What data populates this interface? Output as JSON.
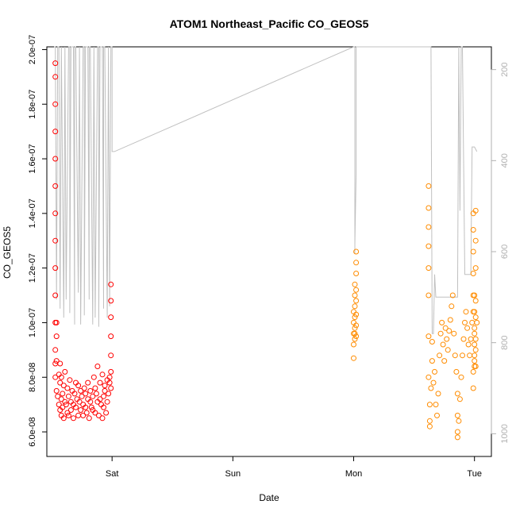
{
  "chart_data": {
    "type": "scatter",
    "title": "ATOM1 Northeast_Pacific CO_GEOS5",
    "xlabel": "Date",
    "ylabel": "CO_GEOS5",
    "x_ticks": [
      "Sat",
      "Sun",
      "Mon",
      "Tue"
    ],
    "x_tick_days": [
      1,
      2,
      3,
      4
    ],
    "xlim_days": [
      0.46,
      4.14
    ],
    "y_ticks": [
      "6.0e-08",
      "8.0e-08",
      "1.0e-07",
      "1.2e-07",
      "1.4e-07",
      "1.6e-07",
      "1.8e-07",
      "2.0e-07"
    ],
    "y_tick_values": [
      6e-08,
      8e-08,
      1e-07,
      1.2e-07,
      1.4e-07,
      1.6e-07,
      1.8e-07,
      2e-07
    ],
    "ylim": [
      5.1e-08,
      2.01e-07
    ],
    "y2_ticks": [
      "200",
      "400",
      "600",
      "800",
      "1000"
    ],
    "y2_tick_values": [
      200,
      400,
      600,
      800,
      1000
    ],
    "y2lim": [
      1050,
      150
    ],
    "grid": false,
    "series": [
      {
        "color": "#ff0000",
        "marker": "open-circle",
        "x": [
          0.53,
          0.53,
          0.53,
          0.53,
          0.53,
          0.53,
          0.53,
          0.53,
          0.53,
          0.53,
          0.53,
          0.53,
          0.53,
          0.53,
          0.54,
          0.54,
          0.54,
          0.54,
          0.55,
          0.56,
          0.56,
          0.57,
          0.57,
          0.57,
          0.58,
          0.58,
          0.58,
          0.59,
          0.59,
          0.6,
          0.6,
          0.61,
          0.61,
          0.62,
          0.63,
          0.63,
          0.64,
          0.64,
          0.65,
          0.66,
          0.66,
          0.67,
          0.68,
          0.68,
          0.69,
          0.7,
          0.7,
          0.71,
          0.72,
          0.72,
          0.73,
          0.74,
          0.74,
          0.75,
          0.76,
          0.76,
          0.77,
          0.78,
          0.78,
          0.79,
          0.8,
          0.8,
          0.81,
          0.82,
          0.82,
          0.83,
          0.84,
          0.84,
          0.85,
          0.86,
          0.86,
          0.87,
          0.88,
          0.88,
          0.89,
          0.9,
          0.9,
          0.91,
          0.92,
          0.92,
          0.93,
          0.93,
          0.94,
          0.94,
          0.95,
          0.96,
          0.96,
          0.97,
          0.98,
          0.98,
          0.99,
          0.99,
          0.99,
          0.99,
          0.99,
          0.99,
          0.99
        ],
        "y": [
          1.95e-07,
          1.9e-07,
          1.8e-07,
          1.7e-07,
          1.6e-07,
          1.5e-07,
          1.4e-07,
          1.3e-07,
          1.2e-07,
          1.1e-07,
          1e-07,
          9e-08,
          8.5e-08,
          8e-08,
          7.5e-08,
          8.6e-08,
          9.5e-08,
          1e-07,
          7.3e-08,
          8.1e-08,
          7e-08,
          7.8e-08,
          6.8e-08,
          8.5e-08,
          7.2e-08,
          6.6e-08,
          8e-08,
          7.4e-08,
          6.9e-08,
          7.7e-08,
          6.5e-08,
          7.1e-08,
          8.2e-08,
          7e-08,
          6.7e-08,
          7.6e-08,
          7.3e-08,
          6.6e-08,
          7.9e-08,
          7.1e-08,
          6.8e-08,
          7.5e-08,
          7e-08,
          6.5e-08,
          7.4e-08,
          7.8e-08,
          6.9e-08,
          7.2e-08,
          6.6e-08,
          7.7e-08,
          7.1e-08,
          6.8e-08,
          7.5e-08,
          7.3e-08,
          6.6e-08,
          7e-08,
          7.6e-08,
          6.9e-08,
          7.4e-08,
          6.7e-08,
          7.2e-08,
          7.8e-08,
          6.5e-08,
          7.1e-08,
          7.5e-08,
          6.9e-08,
          7.3e-08,
          6.8e-08,
          8e-08,
          7.6e-08,
          6.7e-08,
          7.4e-08,
          7.1e-08,
          8.4e-08,
          6.6e-08,
          7.2e-08,
          7.8e-08,
          7e-08,
          8.1e-08,
          6.5e-08,
          7.3e-08,
          6.9e-08,
          7.7e-08,
          7.5e-08,
          6.7e-08,
          7.9e-08,
          7.1e-08,
          7.4e-08,
          7.8e-08,
          8e-08,
          8.2e-08,
          8.8e-08,
          9.5e-08,
          1.02e-07,
          1.08e-07,
          1.14e-07,
          7.6e-08
        ]
      },
      {
        "color": "#ff8c00",
        "marker": "open-circle",
        "x": [
          3.0,
          3.0,
          3.0,
          3.0,
          3.0,
          3.01,
          3.01,
          3.01,
          3.01,
          3.01,
          3.01,
          3.01,
          3.02,
          3.02,
          3.02,
          3.02,
          3.02,
          3.02,
          3.02,
          3.02,
          3.62,
          3.62,
          3.62,
          3.62,
          3.62,
          3.62,
          3.62,
          3.62,
          3.63,
          3.63,
          3.63,
          3.64,
          3.65,
          3.65,
          3.66,
          3.67,
          3.68,
          3.69,
          3.7,
          3.71,
          3.72,
          3.73,
          3.74,
          3.75,
          3.76,
          3.77,
          3.78,
          3.79,
          3.8,
          3.81,
          3.82,
          3.83,
          3.84,
          3.85,
          3.86,
          3.86,
          3.86,
          3.86,
          3.87,
          3.88,
          3.89,
          3.9,
          3.91,
          3.92,
          3.93,
          3.94,
          3.95,
          3.96,
          3.97,
          3.98,
          3.99,
          3.99,
          3.99,
          3.99,
          3.99,
          3.99,
          3.99,
          3.99,
          4.0,
          4.0,
          4.0,
          4.0,
          4.0,
          4.0,
          4.0,
          4.0,
          4.01,
          4.01,
          4.01,
          4.01,
          4.01,
          4.01,
          4.01,
          4.01,
          4.02
        ],
        "y": [
          8.7e-08,
          9.2e-08,
          9.6e-08,
          1e-07,
          1.04e-07,
          9.4e-08,
          9.8e-08,
          1.02e-07,
          1.06e-07,
          1.1e-07,
          1.14e-07,
          9.6e-08,
          1.18e-07,
          1.22e-07,
          1.26e-07,
          9.9e-08,
          1.03e-07,
          9.5e-08,
          1.08e-07,
          1.12e-07,
          1.5e-07,
          1.42e-07,
          1.35e-07,
          1.28e-07,
          1.2e-07,
          1.1e-07,
          9.5e-08,
          8e-08,
          7e-08,
          6.4e-08,
          6.2e-08,
          7.6e-08,
          8.6e-08,
          9.3e-08,
          7.8e-08,
          8.2e-08,
          7e-08,
          6.6e-08,
          7.4e-08,
          8.8e-08,
          9.6e-08,
          1e-07,
          9.2e-08,
          8.6e-08,
          9.8e-08,
          9.4e-08,
          9e-08,
          9.7e-08,
          1.01e-07,
          1.06e-07,
          1.1e-07,
          9.6e-08,
          8.8e-08,
          8.2e-08,
          7.4e-08,
          6.6e-08,
          6e-08,
          5.8e-08,
          6.4e-08,
          7.2e-08,
          8e-08,
          8.8e-08,
          9.4e-08,
          1e-07,
          1.04e-07,
          9.8e-08,
          9.2e-08,
          8.8e-08,
          9.4e-08,
          1e-07,
          1.04e-07,
          1.1e-07,
          1.18e-07,
          1.26e-07,
          1.34e-07,
          1.4e-07,
          8.2e-08,
          7.6e-08,
          8.6e-08,
          9.2e-08,
          1.04e-07,
          1.1e-07,
          9.8e-08,
          8.8e-08,
          8.4e-08,
          9.6e-08,
          1.02e-07,
          1.08e-07,
          1.2e-07,
          1.3e-07,
          1.41e-07,
          9e-08,
          8.4e-08,
          9.4e-08,
          1e-07
        ]
      }
    ],
    "pressure_trace": {
      "color": "#c0c0c0",
      "x": [
        0.52,
        0.53,
        0.54,
        0.55,
        0.56,
        0.57,
        0.58,
        0.58,
        0.6,
        0.61,
        0.61,
        0.62,
        0.64,
        0.65,
        0.65,
        0.66,
        0.68,
        0.69,
        0.69,
        0.7,
        0.72,
        0.73,
        0.73,
        0.74,
        0.76,
        0.77,
        0.77,
        0.78,
        0.8,
        0.81,
        0.81,
        0.82,
        0.84,
        0.85,
        0.85,
        0.86,
        0.88,
        0.89,
        0.89,
        0.9,
        0.92,
        0.93,
        0.93,
        0.94,
        0.96,
        0.97,
        0.97,
        0.98,
        0.99,
        1.0,
        1.0,
        1.02,
        3.0,
        3.01,
        3.01,
        3.01,
        3.02,
        3.02,
        3.03,
        3.03,
        3.04,
        3.62,
        3.63,
        3.64,
        3.65,
        3.66,
        3.67,
        3.68,
        3.7,
        3.72,
        3.74,
        3.76,
        3.78,
        3.8,
        3.82,
        3.84,
        3.86,
        3.87,
        3.88,
        3.89,
        3.9,
        3.92,
        3.94,
        3.96,
        3.97,
        3.98,
        4.0,
        4.02
      ],
      "y": [
        150,
        150,
        705,
        150,
        150,
        725,
        150,
        150,
        745,
        150,
        150,
        705,
        150,
        150,
        735,
        150,
        150,
        760,
        150,
        150,
        690,
        150,
        150,
        760,
        150,
        150,
        740,
        150,
        150,
        705,
        150,
        150,
        760,
        150,
        150,
        745,
        150,
        150,
        765,
        150,
        150,
        725,
        150,
        150,
        745,
        150,
        150,
        720,
        150,
        150,
        380,
        380,
        150,
        150,
        605,
        585,
        430,
        150,
        150,
        150,
        150,
        150,
        150,
        150,
        780,
        780,
        650,
        700,
        700,
        700,
        700,
        700,
        700,
        700,
        700,
        700,
        700,
        150,
        510,
        150,
        150,
        650,
        650,
        650,
        650,
        370,
        370,
        380
      ]
    }
  }
}
